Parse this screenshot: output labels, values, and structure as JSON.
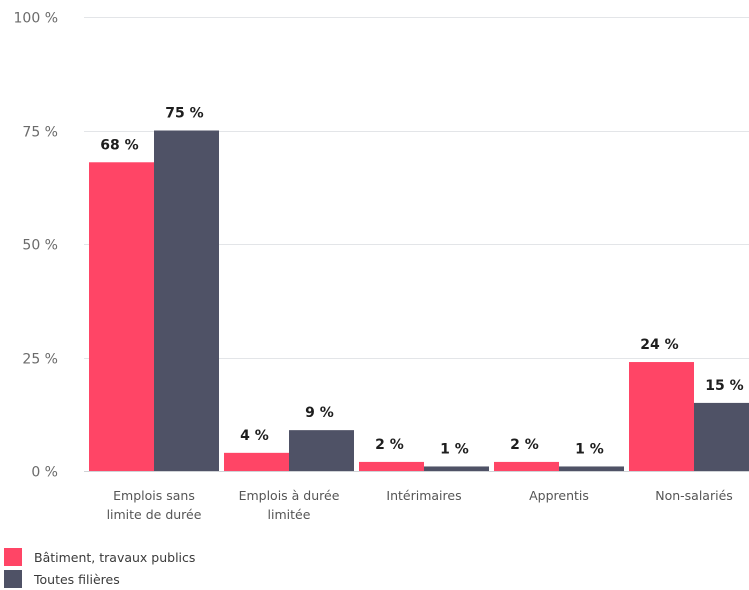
{
  "chart_data": {
    "type": "bar",
    "categories": [
      [
        "Emplois sans",
        "limite de durée"
      ],
      [
        "Emplois à durée",
        "limitée"
      ],
      [
        "Intérimaires"
      ],
      [
        "Apprentis"
      ],
      [
        "Non-salariés"
      ]
    ],
    "series": [
      {
        "name": "Bâtiment, travaux publics",
        "color": "#ff4566",
        "values": [
          68,
          4,
          2,
          2,
          24
        ],
        "labels": [
          "68 %",
          "4 %",
          "2 %",
          "2 %",
          "24 %"
        ]
      },
      {
        "name": "Toutes filières",
        "color": "#4f5266",
        "values": [
          75,
          9,
          1,
          1,
          15
        ],
        "labels": [
          "75 %",
          "9 %",
          "1 %",
          "1 %",
          "15 %"
        ]
      }
    ],
    "y_ticks": [
      {
        "value": 100,
        "label": "100 %"
      },
      {
        "value": 75,
        "label": "75 %"
      },
      {
        "value": 50,
        "label": "50 %"
      },
      {
        "value": 25,
        "label": "25 %"
      },
      {
        "value": 0,
        "label": "0 %"
      }
    ],
    "ylim": [
      0,
      100
    ],
    "grid": true,
    "legend_position": "bottom-left"
  }
}
